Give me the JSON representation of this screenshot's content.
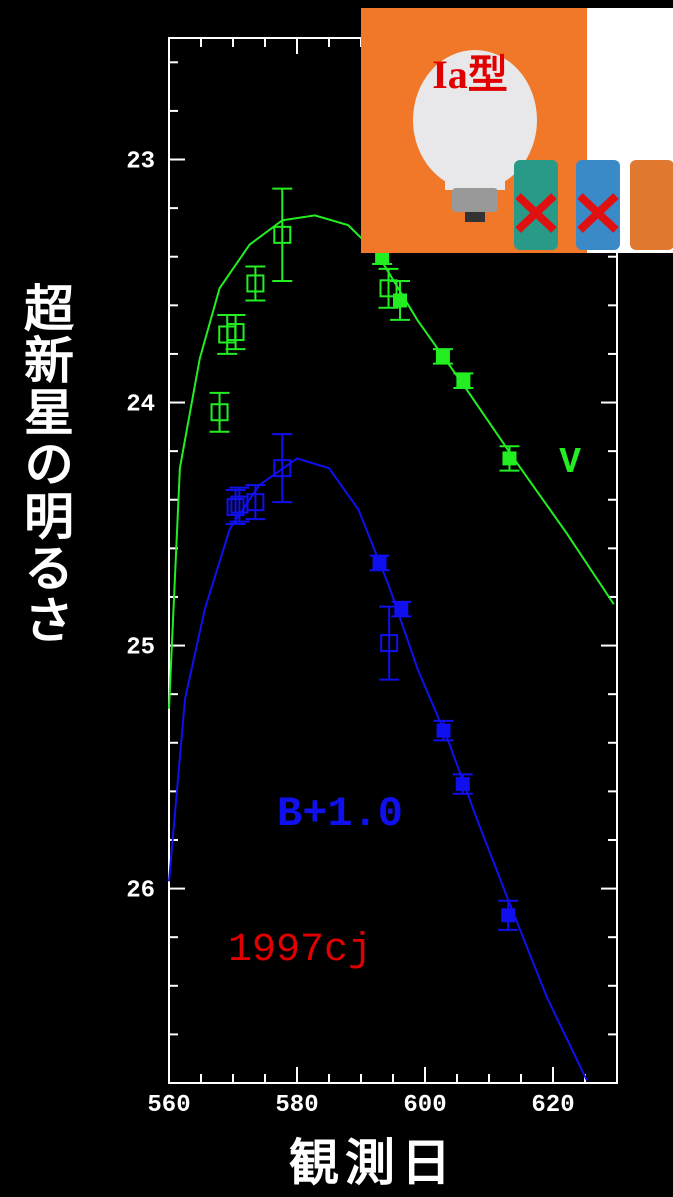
{
  "chart_data": {
    "type": "scatter",
    "annotation": "1997cj",
    "annotation_color": "#e00000",
    "ylabel": "超新星の明るさ",
    "xlabel": "観測日",
    "inset_label": "Ia型",
    "xlim": [
      560,
      630
    ],
    "xticks": [
      560,
      580,
      600,
      620
    ],
    "xminorticks": [
      565,
      570,
      575,
      585,
      590,
      595,
      605,
      610,
      615,
      625
    ],
    "ylim": [
      26.8,
      22.5
    ],
    "yticks": [
      23,
      24,
      25,
      26
    ],
    "yminorticks": [
      22.6,
      22.8,
      23.2,
      23.4,
      23.6,
      23.8,
      24.2,
      24.4,
      24.6,
      24.8,
      25.2,
      25.4,
      25.6,
      25.8,
      26.2,
      26.4,
      26.6
    ],
    "series": [
      {
        "name": "V",
        "color": "#22ee22",
        "x": [
          567.9,
          569.1,
          570.4,
          573.5,
          577.7,
          593.3,
          594.3,
          596.1,
          602.8,
          606.0,
          613.2
        ],
        "values": [
          24.04,
          23.72,
          23.71,
          23.51,
          23.31,
          23.4,
          23.53,
          23.58,
          23.81,
          23.91,
          24.23
        ],
        "errors": [
          0.08,
          0.08,
          0.07,
          0.07,
          0.19,
          0.03,
          0.08,
          0.08,
          0.03,
          0.03,
          0.05
        ],
        "filled": [
          false,
          false,
          false,
          false,
          false,
          true,
          false,
          true,
          true,
          true,
          true
        ]
      },
      {
        "name": "B+1.0",
        "color": "#1010ee",
        "x": [
          570.4,
          571.0,
          573.5,
          577.7,
          592.9,
          596.3,
          594.4,
          602.9,
          605.9,
          613.0
        ],
        "values": [
          24.43,
          24.42,
          24.41,
          24.27,
          24.66,
          24.85,
          24.99,
          25.35,
          25.57,
          26.11
        ],
        "errors": [
          0.07,
          0.07,
          0.07,
          0.14,
          0.03,
          0.03,
          0.15,
          0.04,
          0.04,
          0.06
        ],
        "filled": [
          false,
          false,
          false,
          false,
          true,
          true,
          false,
          true,
          true,
          true
        ]
      }
    ],
    "curves": [
      {
        "color": "#22ee22",
        "x": [
          560,
          561.7,
          564.8,
          567.9,
          572.6,
          577.7,
          582.8,
          588,
          592.6,
          598.8,
          606.6,
          614.4,
          622.2,
          629.5
        ],
        "values": [
          25.26,
          24.27,
          23.82,
          23.53,
          23.35,
          23.25,
          23.23,
          23.27,
          23.39,
          23.66,
          23.95,
          24.25,
          24.54,
          24.83
        ]
      },
      {
        "color": "#1010ee",
        "x": [
          560,
          562.5,
          565.6,
          569.5,
          574.1,
          580,
          585,
          589.6,
          594.3,
          598.9,
          603.6,
          608.2,
          612.9,
          619.1,
          625.3
        ],
        "values": [
          25.97,
          25.22,
          24.85,
          24.52,
          24.34,
          24.23,
          24.27,
          24.44,
          24.75,
          25.1,
          25.39,
          25.72,
          26.04,
          26.45,
          26.79
        ]
      }
    ]
  }
}
